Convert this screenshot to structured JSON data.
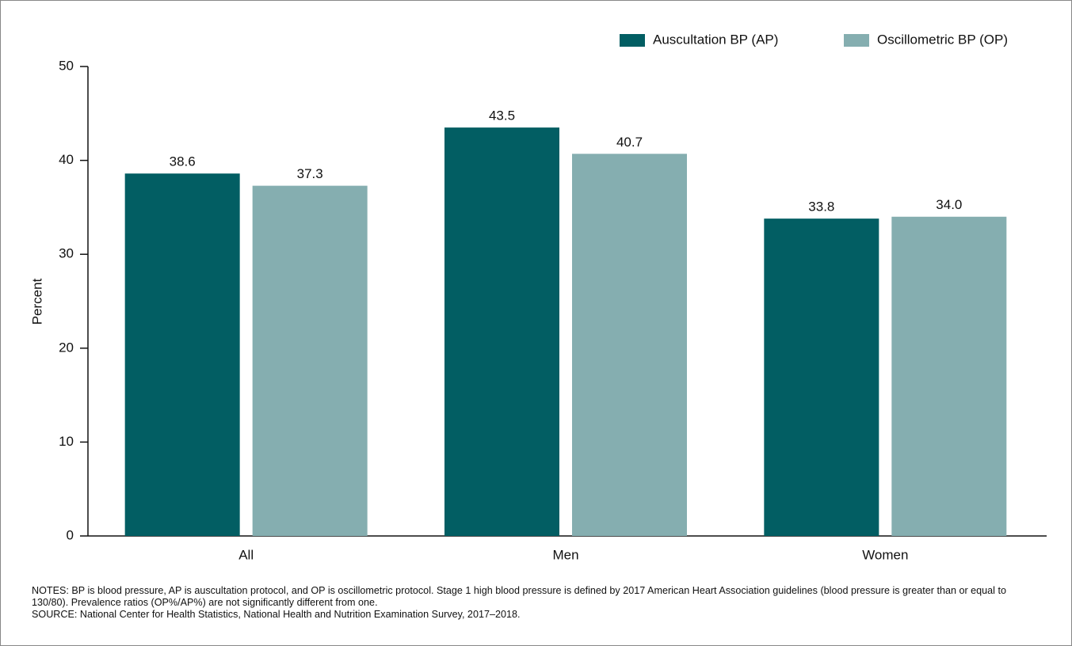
{
  "chart_data": {
    "type": "bar",
    "categories": [
      "All",
      "Men",
      "Women"
    ],
    "series": [
      {
        "name": "Auscultation BP (AP)",
        "color": "#025e63",
        "values": [
          38.6,
          43.5,
          33.8
        ],
        "value_labels": [
          "38.6",
          "43.5",
          "33.8"
        ]
      },
      {
        "name": "Oscillometric BP (OP)",
        "color": "#85aeb0",
        "values": [
          37.3,
          40.7,
          34.0
        ],
        "value_labels": [
          "37.3",
          "40.7",
          "34.0"
        ]
      }
    ],
    "y_label": "Percent",
    "ylim": [
      0,
      50
    ],
    "yticks": [
      0,
      10,
      20,
      30,
      40,
      50
    ],
    "legend": "top-right",
    "notes": "NOTES: BP is blood pressure, AP is auscultation protocol, and OP is oscillometric protocol. Stage 1 high blood pressure is defined by 2017 American Heart Association guidelines (blood pressure is greater than or equal to 130/80). Prevalence ratios (OP%/AP%) are not significantly different from one.",
    "source": "SOURCE: National Center for Health Statistics, National Health and Nutrition Examination Survey, 2017–2018."
  }
}
